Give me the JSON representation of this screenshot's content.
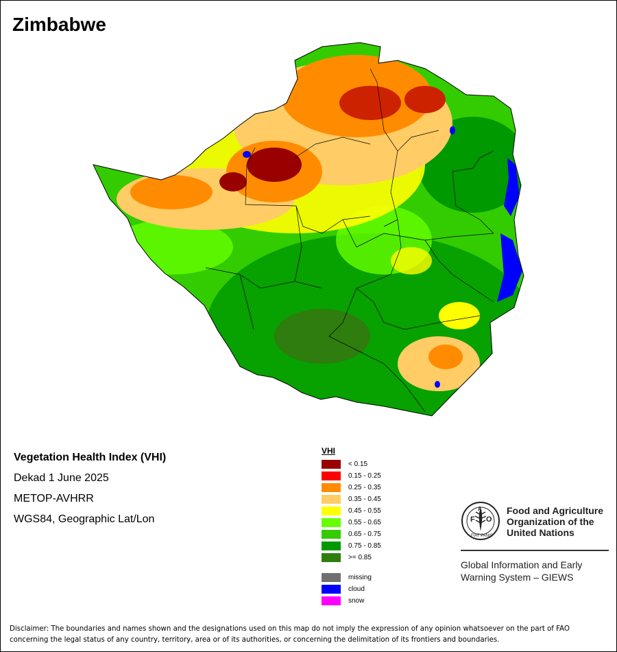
{
  "country": "Zimbabwe",
  "info_lines": {
    "product": "Vegetation Health Index (VHI)",
    "period": "Dekad 1 June 2025",
    "sensor": "METOP-AVHRR",
    "projection": "WGS84, Geographic Lat/Lon"
  },
  "legend": {
    "title": "VHI",
    "classes": [
      {
        "label": "< 0.15",
        "color": "#990000"
      },
      {
        "label": "0.15 - 0.25",
        "color": "#ff0000"
      },
      {
        "label": "0.25 - 0.35",
        "color": "#ff8c00"
      },
      {
        "label": "0.35 - 0.45",
        "color": "#ffcc66"
      },
      {
        "label": "0.45 - 0.55",
        "color": "#ffff00"
      },
      {
        "label": "0.55 - 0.65",
        "color": "#66ff00"
      },
      {
        "label": "0.65 - 0.75",
        "color": "#33cc00"
      },
      {
        "label": "0.75 - 0.85",
        "color": "#009900"
      },
      {
        "label": ">= 0.85",
        "color": "#2e7d0e"
      }
    ],
    "other": [
      {
        "label": "missing",
        "color": "#707070"
      },
      {
        "label": "cloud",
        "color": "#0000ff"
      },
      {
        "label": "snow",
        "color": "#ff00ff"
      }
    ]
  },
  "organization": {
    "name_line1": "Food and Agriculture",
    "name_line2": "Organization of the",
    "name_line3": "United Nations",
    "logo_text": "FAO",
    "logo_motto": "FIAT PANIS",
    "system_line1": "Global Information and Early",
    "system_line2": "Warning System – GIEWS"
  },
  "disclaimer": "Disclaimer: The boundaries and names shown and the designations used on this map do not imply the expression of any opinion whatsoever on the part of FAO concerning the legal status of any country, territory, area or of its authorities, or concerning the delimitation of its frontiers and boundaries."
}
